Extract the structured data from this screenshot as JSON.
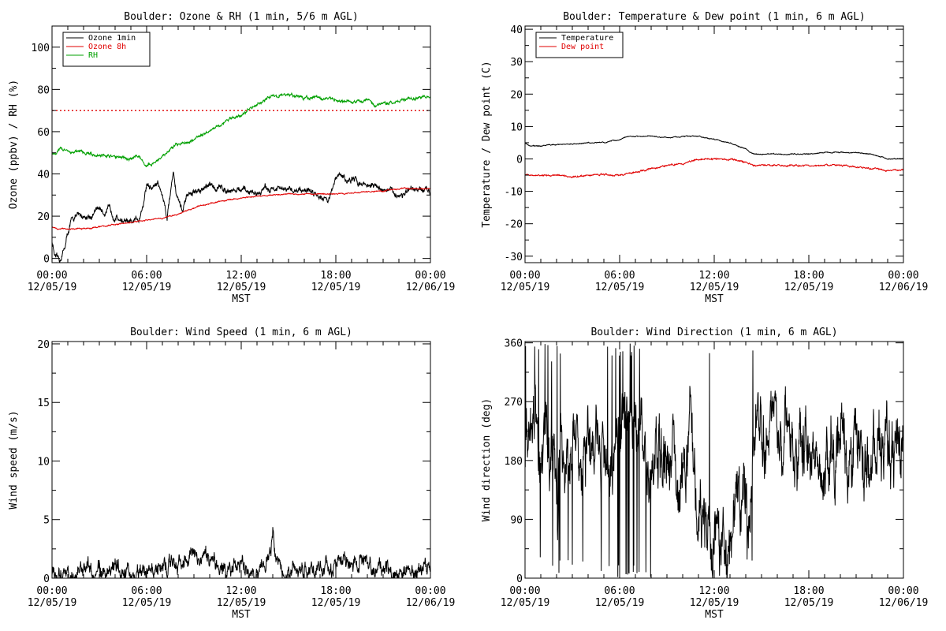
{
  "chart_data": [
    {
      "id": "ozone",
      "type": "line",
      "title": "Boulder: Ozone & RH (1 min, 5/6 m AGL)",
      "xlabel": "MST",
      "ylabel": "Ozone (ppbv) / RH (%)",
      "xlim": [
        0,
        24
      ],
      "ylim": [
        -2,
        110
      ],
      "x_ticks": [
        {
          "line1": "00:00",
          "line2": "12/05/19"
        },
        {
          "line1": "06:00",
          "line2": "12/05/19"
        },
        {
          "line1": "12:00",
          "line2": "12/05/19"
        },
        {
          "line1": "18:00",
          "line2": "12/05/19"
        },
        {
          "line1": "00:00",
          "line2": "12/06/19"
        }
      ],
      "y_ticks": [
        "0",
        "20",
        "40",
        "60",
        "80",
        "100"
      ],
      "legend_position": "top-left",
      "reference_line": {
        "y": 70,
        "color": "#e00000",
        "style": "dotted"
      },
      "series": [
        {
          "name": "Ozone 1min",
          "color": "#000000",
          "noise": 1.6,
          "x": [
            0,
            0.2,
            0.5,
            0.8,
            1,
            1.3,
            1.5,
            2,
            2.5,
            3,
            3.3,
            3.6,
            4,
            4.5,
            5,
            5.5,
            5.8,
            6,
            6.3,
            6.7,
            7,
            7.3,
            7.7,
            7.9,
            8.3,
            8.6,
            9,
            10,
            11,
            12,
            13,
            13.5,
            14,
            15,
            16,
            17,
            17.5,
            18,
            18.3,
            18.6,
            19,
            20,
            20.5,
            21,
            22,
            23,
            24
          ],
          "y": [
            8,
            0,
            -1,
            5,
            12,
            19,
            20,
            20,
            20,
            24,
            22,
            23,
            20,
            18,
            16,
            19,
            26,
            35,
            33,
            36,
            30,
            20,
            42,
            30,
            22,
            30,
            31,
            34,
            33,
            32,
            31,
            33,
            33,
            32,
            33,
            30,
            28,
            37,
            40,
            37,
            37,
            35,
            34,
            33,
            30,
            32,
            32
          ]
        },
        {
          "name": "Ozone 8h",
          "color": "#e00000",
          "noise": 0.3,
          "x": [
            0,
            0.5,
            1,
            2,
            3,
            4,
            5,
            6,
            7,
            8,
            9,
            10,
            11,
            12,
            13,
            14,
            15,
            16,
            17,
            18,
            19,
            20,
            21,
            22,
            23,
            24
          ],
          "y": [
            15,
            14,
            14,
            14,
            15,
            16,
            17,
            18,
            19,
            21,
            24,
            26,
            27.5,
            28.5,
            29.5,
            30,
            30.5,
            30.5,
            30.5,
            30.5,
            31,
            31.5,
            32,
            33,
            33,
            33
          ]
        },
        {
          "name": "RH",
          "color": "#00a000",
          "noise": 0.8,
          "x": [
            0,
            0.5,
            1,
            2,
            3,
            4,
            4.5,
            5,
            5.5,
            5.8,
            6,
            6.5,
            7,
            7.5,
            8,
            9,
            10,
            11,
            12,
            13,
            13.5,
            14,
            15,
            16,
            17,
            18,
            19,
            20,
            20.5,
            21,
            22,
            23,
            24
          ],
          "y": [
            49,
            52,
            51,
            50,
            49,
            48,
            48,
            47,
            49,
            45,
            44,
            45,
            48,
            52,
            54,
            56,
            61,
            65,
            68,
            73,
            75,
            77,
            77,
            76,
            76,
            75,
            74,
            75,
            73,
            73,
            75,
            76,
            76
          ]
        }
      ]
    },
    {
      "id": "temp",
      "type": "line",
      "title": "Boulder: Temperature & Dew point (1 min, 6 m AGL)",
      "xlabel": "MST",
      "ylabel": "Temperature / Dew point (C)",
      "xlim": [
        0,
        24
      ],
      "ylim": [
        -32,
        41
      ],
      "x_ticks": [
        {
          "line1": "00:00",
          "line2": "12/05/19"
        },
        {
          "line1": "06:00",
          "line2": "12/05/19"
        },
        {
          "line1": "12:00",
          "line2": "12/05/19"
        },
        {
          "line1": "18:00",
          "line2": "12/05/19"
        },
        {
          "line1": "00:00",
          "line2": "12/06/19"
        }
      ],
      "y_ticks": [
        "-30",
        "-20",
        "-10",
        "0",
        "10",
        "20",
        "30",
        "40"
      ],
      "legend_position": "top-left",
      "series": [
        {
          "name": "Temperature",
          "color": "#000000",
          "noise": 0.15,
          "x": [
            0,
            0.3,
            1,
            2,
            3,
            4,
            5,
            6,
            6.5,
            7,
            8,
            9,
            10,
            11,
            12,
            13,
            13.5,
            14,
            14.5,
            15,
            16,
            17,
            18,
            19,
            20,
            21,
            22,
            23,
            24
          ],
          "y": [
            5,
            4,
            4,
            4.5,
            4.5,
            5,
            5,
            6,
            7,
            7,
            7,
            6.5,
            7,
            7,
            6,
            5,
            4,
            3,
            1.5,
            1.5,
            1.5,
            1.5,
            1.5,
            2,
            2,
            2,
            1.5,
            0,
            0
          ]
        },
        {
          "name": "Dew point",
          "color": "#e00000",
          "noise": 0.25,
          "x": [
            0,
            1,
            2,
            3,
            4,
            5,
            6,
            7,
            8,
            9,
            10,
            11,
            12,
            13,
            14,
            14.5,
            15,
            16,
            17,
            18,
            19,
            20,
            21,
            22,
            23,
            24
          ],
          "y": [
            -5,
            -5,
            -5,
            -5.5,
            -5,
            -5,
            -5,
            -4,
            -3,
            -2,
            -1.5,
            0,
            0,
            0,
            -1,
            -2,
            -2,
            -2,
            -2,
            -2,
            -2,
            -2,
            -2.5,
            -3,
            -3.5,
            -3.5
          ]
        }
      ]
    },
    {
      "id": "wspd",
      "type": "line",
      "title": "Boulder: Wind Speed (1 min, 6 m AGL)",
      "xlabel": "MST",
      "ylabel": "Wind speed (m/s)",
      "xlim": [
        0,
        24
      ],
      "ylim": [
        0,
        20.2
      ],
      "x_ticks": [
        {
          "line1": "00:00",
          "line2": "12/05/19"
        },
        {
          "line1": "06:00",
          "line2": "12/05/19"
        },
        {
          "line1": "12:00",
          "line2": "12/05/19"
        },
        {
          "line1": "18:00",
          "line2": "12/05/19"
        },
        {
          "line1": "00:00",
          "line2": "12/06/19"
        }
      ],
      "y_ticks": [
        "0",
        "5",
        "10",
        "15",
        "20"
      ],
      "series": [
        {
          "name": "",
          "color": "#000000",
          "noise": 0.8,
          "x": [
            0,
            2,
            4,
            6,
            7,
            8,
            9,
            10,
            11,
            12,
            13,
            13.5,
            13.9,
            14,
            14.1,
            14.5,
            15,
            16,
            17,
            18,
            19,
            20,
            21,
            22,
            23,
            24
          ],
          "y": [
            0.5,
            0.6,
            0.5,
            0.8,
            1.1,
            1.4,
            1.6,
            1.4,
            1.0,
            0.9,
            0.8,
            1.2,
            2.5,
            4.5,
            2.0,
            0.9,
            0.6,
            0.5,
            0.7,
            1.1,
            1.4,
            1.2,
            0.8,
            0.5,
            0.4,
            0.5
          ]
        }
      ]
    },
    {
      "id": "wdir",
      "type": "line",
      "title": "Boulder: Wind Direction (1 min, 6 m AGL)",
      "xlabel": "MST",
      "ylabel": "Wind direction (deg)",
      "xlim": [
        0,
        24
      ],
      "ylim": [
        0,
        362
      ],
      "x_ticks": [
        {
          "line1": "00:00",
          "line2": "12/05/19"
        },
        {
          "line1": "06:00",
          "line2": "12/05/19"
        },
        {
          "line1": "12:00",
          "line2": "12/05/19"
        },
        {
          "line1": "18:00",
          "line2": "12/05/19"
        },
        {
          "line1": "00:00",
          "line2": "12/06/19"
        }
      ],
      "y_ticks": [
        "0",
        "90",
        "180",
        "270",
        "360"
      ],
      "series": [
        {
          "name": "",
          "color": "#000000",
          "noise": 60,
          "x": [
            0,
            1,
            2,
            3,
            4,
            5,
            5.5,
            6,
            6.5,
            7,
            7.5,
            8,
            8.5,
            9,
            10,
            10.5,
            11,
            11.5,
            12,
            12.5,
            13,
            13.5,
            14,
            14.5,
            15,
            16,
            17,
            18,
            19,
            20,
            21,
            21.5,
            22,
            23,
            24
          ],
          "y": [
            200,
            190,
            180,
            200,
            210,
            190,
            170,
            200,
            220,
            210,
            190,
            180,
            175,
            180,
            175,
            200,
            120,
            70,
            60,
            70,
            80,
            110,
            120,
            170,
            210,
            210,
            205,
            200,
            200,
            210,
            205,
            190,
            200,
            200,
            210
          ]
        }
      ]
    }
  ]
}
